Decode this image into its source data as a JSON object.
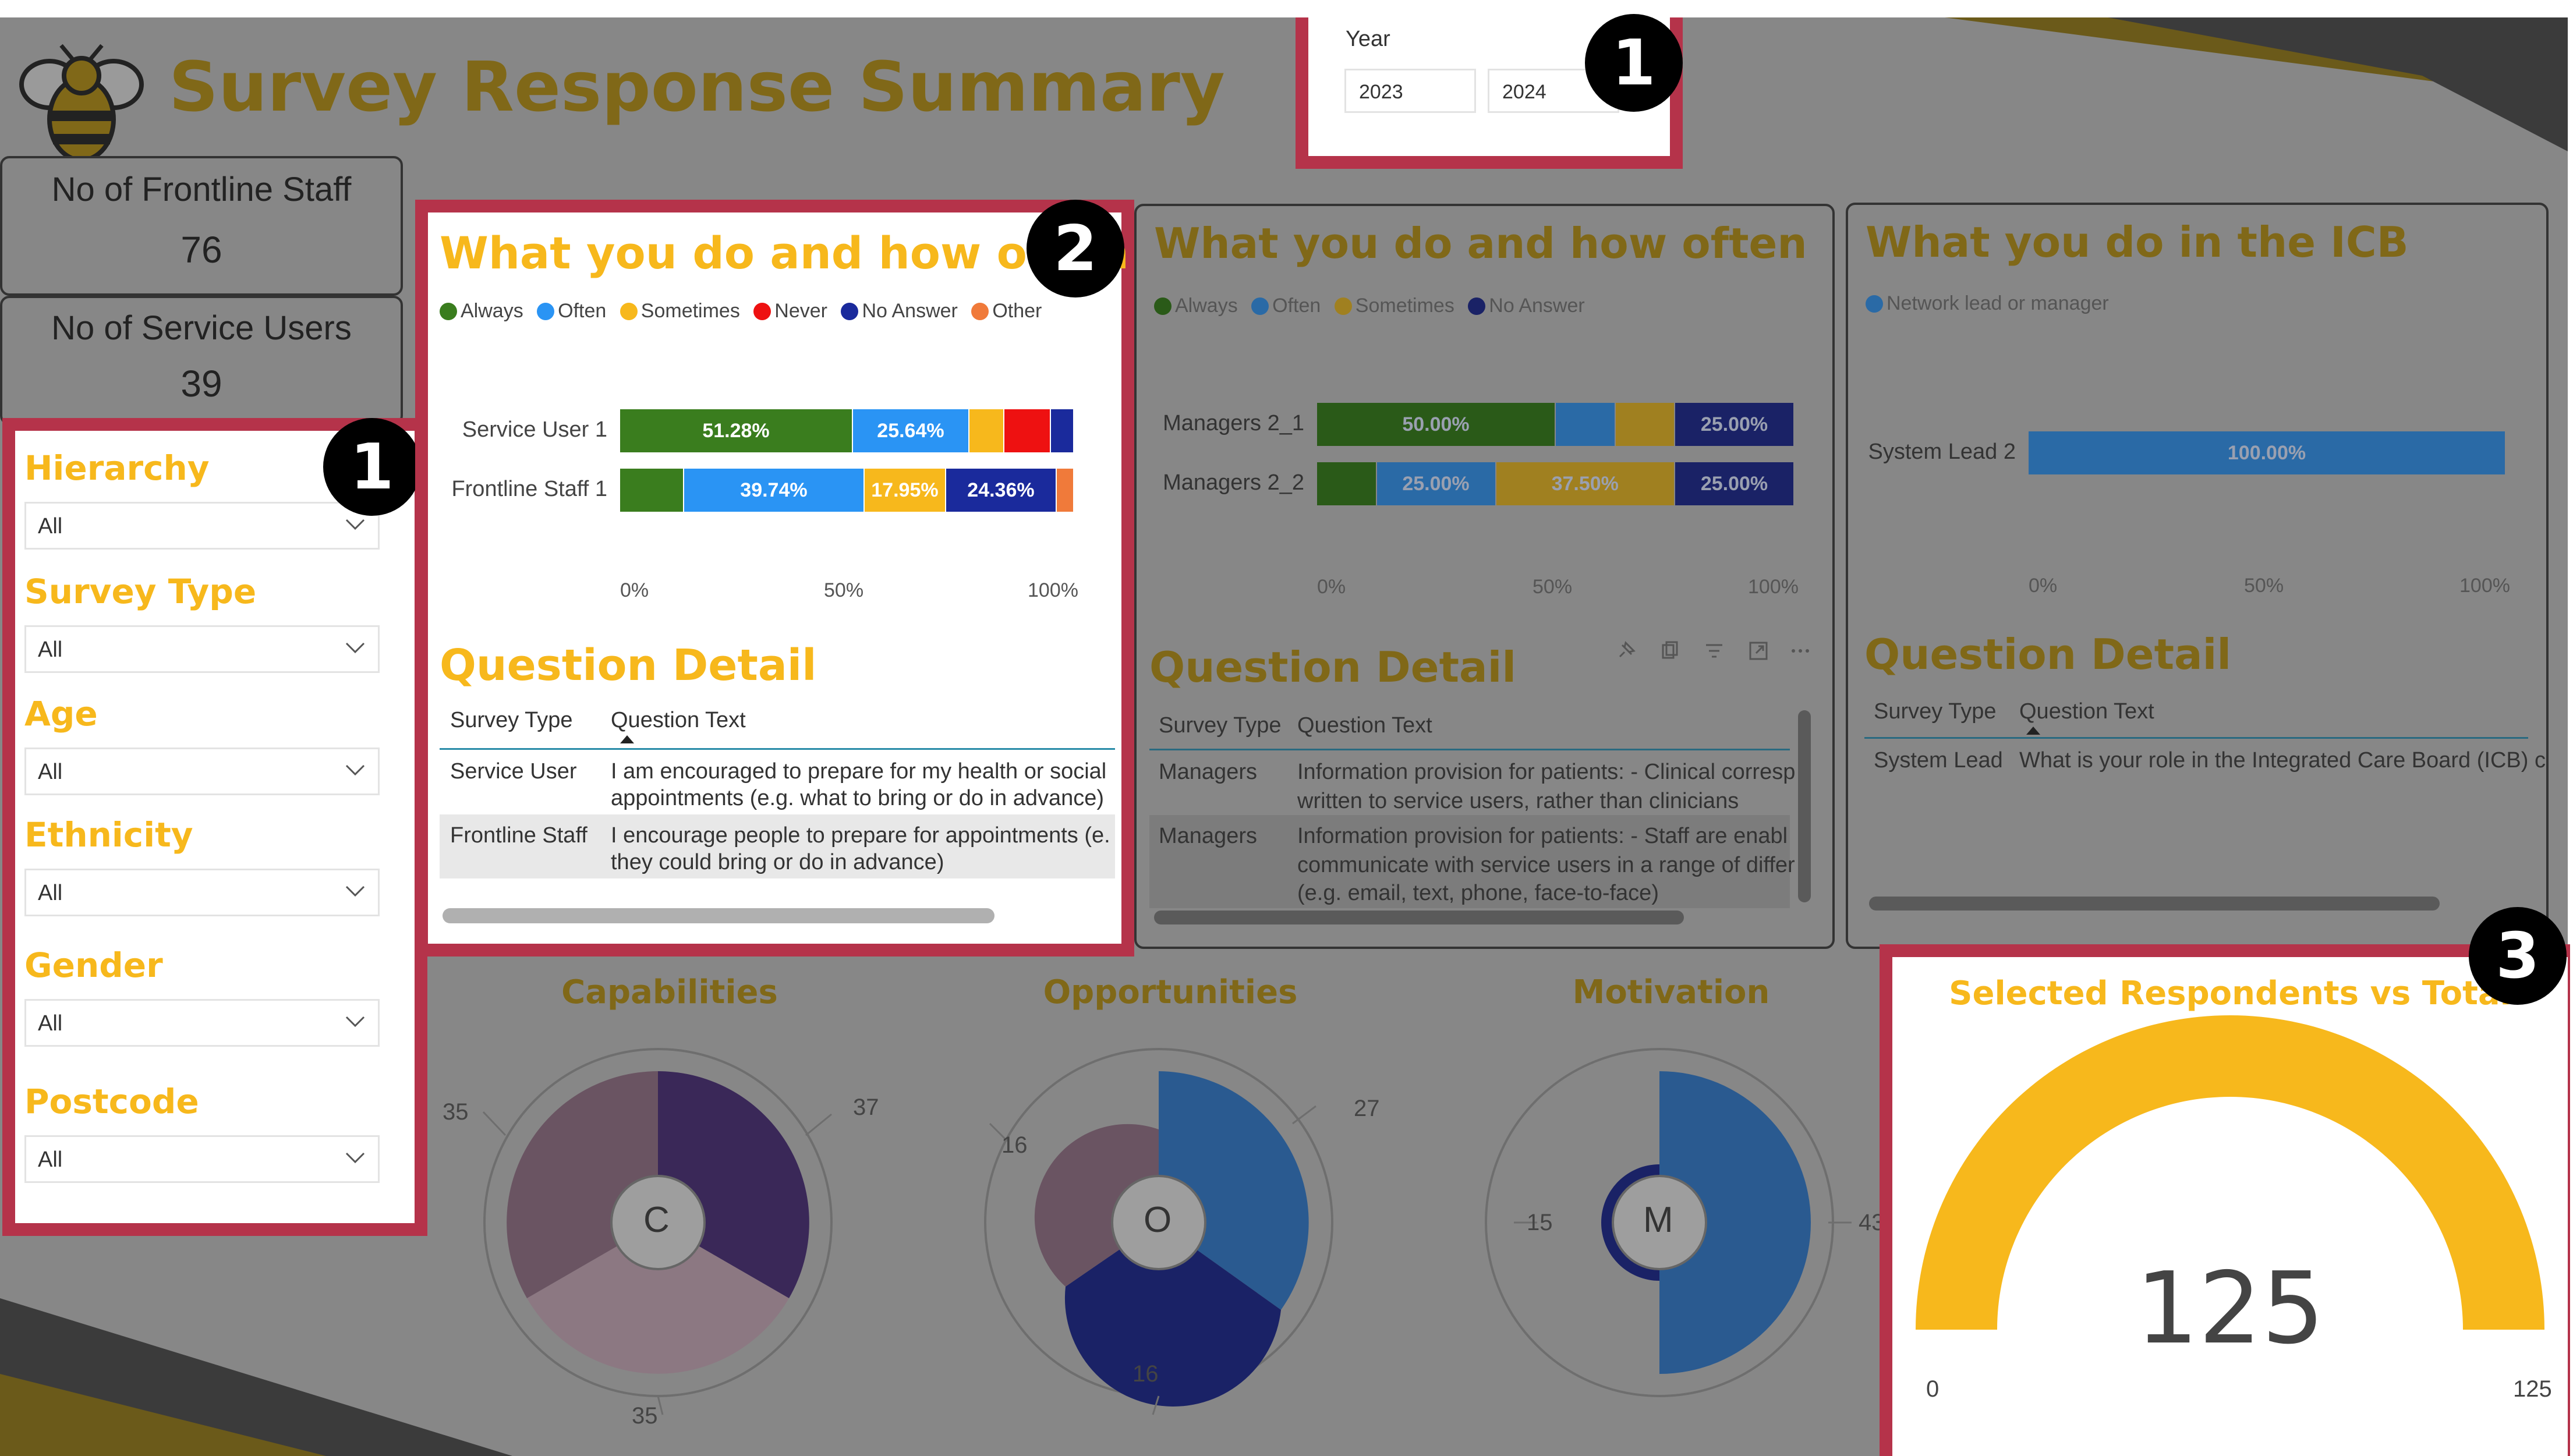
{
  "report": {
    "title": "Survey Response Summary",
    "icon": "bee-logo-icon"
  },
  "year_slicer": {
    "label": "Year",
    "options": [
      "2023",
      "2024"
    ]
  },
  "cards": [
    {
      "label": "No of Frontline Staff",
      "value": "76"
    },
    {
      "label": "No of Service Users",
      "value": "39"
    }
  ],
  "filters": [
    {
      "label": "Hierarchy",
      "value": "All"
    },
    {
      "label": "Survey Type",
      "value": "All"
    },
    {
      "label": "Age",
      "value": "All"
    },
    {
      "label": "Ethnicity",
      "value": "All"
    },
    {
      "label": "Gender",
      "value": "All"
    },
    {
      "label": "Postcode",
      "value": "All"
    }
  ],
  "badges": {
    "one": "1",
    "two": "2",
    "three": "3"
  },
  "colors": {
    "Always": "#3a7d1e",
    "Often": "#2a94f4",
    "Sometimes": "#f7b81c",
    "Never": "#ee1111",
    "No Answer": "#1a2a9c",
    "Other": "#f07a3a",
    "Network lead or manager": "#2a94f4",
    "gauge": "#f7b81c",
    "frame": "#b5334a",
    "title_gold": "#806818"
  },
  "chart_data": [
    {
      "type": "bar",
      "orientation": "horizontal-stacked-100",
      "title": "What you do and how often",
      "categories": [
        "Service User 1",
        "Frontline Staff 1"
      ],
      "legend": [
        "Always",
        "Often",
        "Sometimes",
        "Never",
        "No Answer",
        "Other"
      ],
      "series": [
        {
          "name": "Always",
          "values": [
            51.28,
            14.1
          ]
        },
        {
          "name": "Often",
          "values": [
            25.64,
            39.74
          ]
        },
        {
          "name": "Sometimes",
          "values": [
            7.69,
            17.95
          ]
        },
        {
          "name": "Never",
          "values": [
            10.26,
            0
          ]
        },
        {
          "name": "No Answer",
          "values": [
            5.13,
            24.36
          ]
        },
        {
          "name": "Other",
          "values": [
            0,
            3.85
          ]
        }
      ],
      "data_labels": [
        [
          "51.28%",
          "25.64%",
          "",
          "",
          "",
          ""
        ],
        [
          "",
          "39.74%",
          "17.95%",
          "",
          "24.36%",
          ""
        ]
      ],
      "xticks": [
        "0%",
        "50%",
        "100%"
      ],
      "xlim": [
        0,
        100
      ]
    },
    {
      "type": "bar",
      "orientation": "horizontal-stacked-100",
      "title": "What you do and how often",
      "categories": [
        "Managers 2_1",
        "Managers 2_2"
      ],
      "legend": [
        "Always",
        "Often",
        "Sometimes",
        "No Answer"
      ],
      "series": [
        {
          "name": "Always",
          "values": [
            50.0,
            12.5
          ]
        },
        {
          "name": "Often",
          "values": [
            12.5,
            25.0
          ]
        },
        {
          "name": "Sometimes",
          "values": [
            12.5,
            37.5
          ]
        },
        {
          "name": "No Answer",
          "values": [
            25.0,
            25.0
          ]
        }
      ],
      "data_labels": [
        [
          "50.00%",
          "",
          "",
          "25.00%"
        ],
        [
          "",
          "25.00%",
          "37.50%",
          "25.00%"
        ]
      ],
      "xticks": [
        "0%",
        "50%",
        "100%"
      ],
      "xlim": [
        0,
        100
      ]
    },
    {
      "type": "bar",
      "orientation": "horizontal-stacked-100",
      "title": "What you do in the ICB",
      "categories": [
        "System Lead 2"
      ],
      "legend": [
        "Network lead or manager"
      ],
      "series": [
        {
          "name": "Network lead or manager",
          "values": [
            100.0
          ]
        }
      ],
      "data_labels": [
        [
          "100.00%"
        ]
      ],
      "xticks": [
        "0%",
        "50%",
        "100%"
      ],
      "xlim": [
        0,
        100
      ]
    }
  ],
  "question_tables": [
    {
      "title": "Question Detail",
      "columns": [
        "Survey Type",
        "Question Text"
      ],
      "rows": [
        [
          "Service User",
          "I am encouraged to prepare for my health or social",
          "appointments (e.g. what to bring or do in advance)"
        ],
        [
          "Frontline Staff",
          "I encourage people to prepare for appointments (e.",
          "they could bring or do in advance)"
        ]
      ]
    },
    {
      "title": "Question Detail",
      "columns": [
        "Survey Type",
        "Question Text"
      ],
      "rows": [
        [
          "Managers",
          "Information provision for patients: - Clinical corresp",
          "written to service users, rather than clinicians"
        ],
        [
          "Managers",
          "Information provision for patients: - Staff are enabl",
          "communicate with service users in a range of differ",
          "(e.g. email, text, phone, face-to-face)"
        ]
      ]
    },
    {
      "title": "Question Detail",
      "columns": [
        "Survey Type",
        "Question Text"
      ],
      "rows": [
        [
          "System Lead",
          "What is your role in the Integrated Care Board (ICB) c"
        ]
      ]
    }
  ],
  "donuts": [
    {
      "title": "Capabilities",
      "center": "C",
      "labels": [
        "35",
        "37",
        "35"
      ]
    },
    {
      "title": "Opportunities",
      "center": "O",
      "labels": [
        "16",
        "27",
        "16"
      ]
    },
    {
      "title": "Motivation",
      "center": "M",
      "labels": [
        "15",
        "43"
      ]
    }
  ],
  "gauge": {
    "title": "Selected Respondents vs Total",
    "value": "125",
    "min": "0",
    "max": "125",
    "fraction": 1.0
  }
}
